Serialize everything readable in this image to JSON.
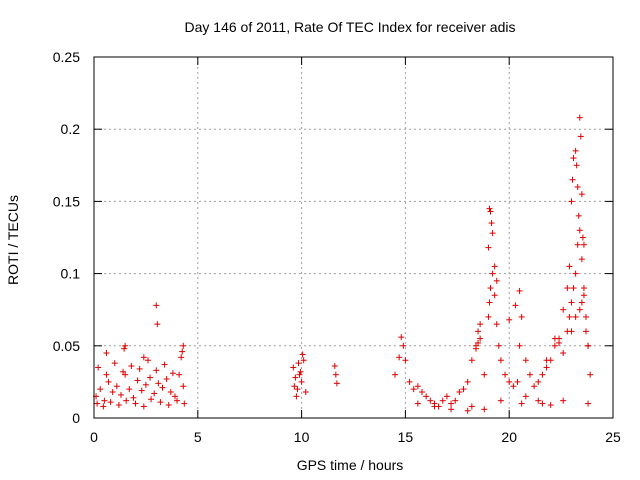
{
  "chart_data": {
    "type": "scatter",
    "title": "Day 146 of 2011, Rate Of TEC Index for receiver adis",
    "xlabel": "GPS time / hours",
    "ylabel": "ROTI / TECUs",
    "xlim": [
      0,
      25
    ],
    "ylim": [
      0,
      0.25
    ],
    "xticks": [
      0,
      5,
      10,
      15,
      20,
      25
    ],
    "xtick_labels": [
      "0",
      "5",
      "10",
      "15",
      "20",
      "25"
    ],
    "yticks": [
      0,
      0.05,
      0.1,
      0.15,
      0.2,
      0.25
    ],
    "ytick_labels": [
      "0",
      "0.05",
      "0.1",
      "0.15",
      "0.2",
      "0.25"
    ],
    "grid": true,
    "marker": "+",
    "color": "#e00000",
    "series": [
      {
        "name": "ROTI",
        "x": [
          0.1,
          0.3,
          0.5,
          0.7,
          0.9,
          1.1,
          1.3,
          1.5,
          1.7,
          1.9,
          2.1,
          2.3,
          2.5,
          2.7,
          2.9,
          3.1,
          3.3,
          3.5,
          3.7,
          3.9,
          4.1,
          4.3,
          0.2,
          0.6,
          1.0,
          1.4,
          1.8,
          2.2,
          2.6,
          3.0,
          3.4,
          3.8,
          4.2,
          0.15,
          0.45,
          0.8,
          1.2,
          1.55,
          2.0,
          2.4,
          2.75,
          3.2,
          3.6,
          4.0,
          4.35,
          0.6,
          1.5,
          2.4,
          3.0,
          3.05,
          4.3,
          4.25,
          1.45,
          9.6,
          9.7,
          9.8,
          9.9,
          10.0,
          10.1,
          9.75,
          9.95,
          9.65,
          10.05,
          9.85,
          10.2,
          11.6,
          11.65,
          11.7,
          14.5,
          14.7,
          14.8,
          14.9,
          15.0,
          15.2,
          15.4,
          15.6,
          15.8,
          16.0,
          16.2,
          16.4,
          16.6,
          16.8,
          17.0,
          17.2,
          17.4,
          17.6,
          17.8,
          18.0,
          18.2,
          18.4,
          18.5,
          18.6,
          18.8,
          19.0,
          19.05,
          19.1,
          19.2,
          19.3,
          19.4,
          19.5,
          19.6,
          19.8,
          20.0,
          20.2,
          20.4,
          20.5,
          20.6,
          20.8,
          21.0,
          21.2,
          21.4,
          21.6,
          21.8,
          22.0,
          22.2,
          22.4,
          22.6,
          22.8,
          22.9,
          23.0,
          23.1,
          23.2,
          23.3,
          23.4,
          23.5,
          23.6,
          23.7,
          23.8,
          23.9,
          18.4,
          18.5,
          18.6,
          19.05,
          19.1,
          19.2,
          19.3,
          19.4,
          19.0,
          19.15,
          20.0,
          20.3,
          20.5,
          22.6,
          22.8,
          22.9,
          23.0,
          23.05,
          23.1,
          23.2,
          23.25,
          23.3,
          23.35,
          23.4,
          23.45,
          23.5,
          23.55,
          23.6,
          23.0,
          23.2,
          23.4,
          23.5,
          23.6,
          23.7,
          23.8,
          22.4,
          22.2,
          21.8,
          18.2,
          18.8,
          20.6,
          21.4,
          22.0,
          15.6,
          16.4,
          17.2,
          18.0,
          19.6,
          20.8,
          21.6,
          22.6,
          23.8
        ],
        "y": [
          0.015,
          0.02,
          0.012,
          0.025,
          0.018,
          0.022,
          0.016,
          0.03,
          0.02,
          0.014,
          0.026,
          0.019,
          0.023,
          0.028,
          0.017,
          0.024,
          0.021,
          0.027,
          0.018,
          0.015,
          0.03,
          0.022,
          0.035,
          0.03,
          0.038,
          0.032,
          0.036,
          0.034,
          0.04,
          0.033,
          0.037,
          0.031,
          0.042,
          0.01,
          0.008,
          0.011,
          0.009,
          0.012,
          0.01,
          0.008,
          0.013,
          0.011,
          0.009,
          0.012,
          0.01,
          0.045,
          0.05,
          0.042,
          0.078,
          0.065,
          0.05,
          0.046,
          0.048,
          0.035,
          0.028,
          0.02,
          0.03,
          0.025,
          0.04,
          0.015,
          0.032,
          0.022,
          0.044,
          0.038,
          0.018,
          0.036,
          0.03,
          0.024,
          0.03,
          0.042,
          0.056,
          0.05,
          0.04,
          0.025,
          0.02,
          0.022,
          0.018,
          0.015,
          0.012,
          0.01,
          0.008,
          0.012,
          0.015,
          0.01,
          0.012,
          0.018,
          0.02,
          0.025,
          0.04,
          0.05,
          0.06,
          0.055,
          0.03,
          0.07,
          0.08,
          0.09,
          0.1,
          0.085,
          0.065,
          0.05,
          0.04,
          0.03,
          0.025,
          0.022,
          0.025,
          0.05,
          0.07,
          0.04,
          0.03,
          0.022,
          0.025,
          0.03,
          0.035,
          0.04,
          0.05,
          0.055,
          0.045,
          0.06,
          0.07,
          0.08,
          0.09,
          0.1,
          0.12,
          0.13,
          0.11,
          0.09,
          0.07,
          0.05,
          0.03,
          0.048,
          0.052,
          0.065,
          0.145,
          0.143,
          0.128,
          0.105,
          0.095,
          0.118,
          0.135,
          0.068,
          0.078,
          0.088,
          0.075,
          0.09,
          0.105,
          0.15,
          0.165,
          0.18,
          0.185,
          0.175,
          0.16,
          0.14,
          0.208,
          0.195,
          0.155,
          0.125,
          0.12,
          0.06,
          0.07,
          0.075,
          0.08,
          0.085,
          0.06,
          0.05,
          0.052,
          0.055,
          0.04,
          0.008,
          0.006,
          0.01,
          0.012,
          0.009,
          0.01,
          0.008,
          0.006,
          0.005,
          0.012,
          0.015,
          0.01,
          0.012,
          0.01
        ]
      }
    ]
  }
}
